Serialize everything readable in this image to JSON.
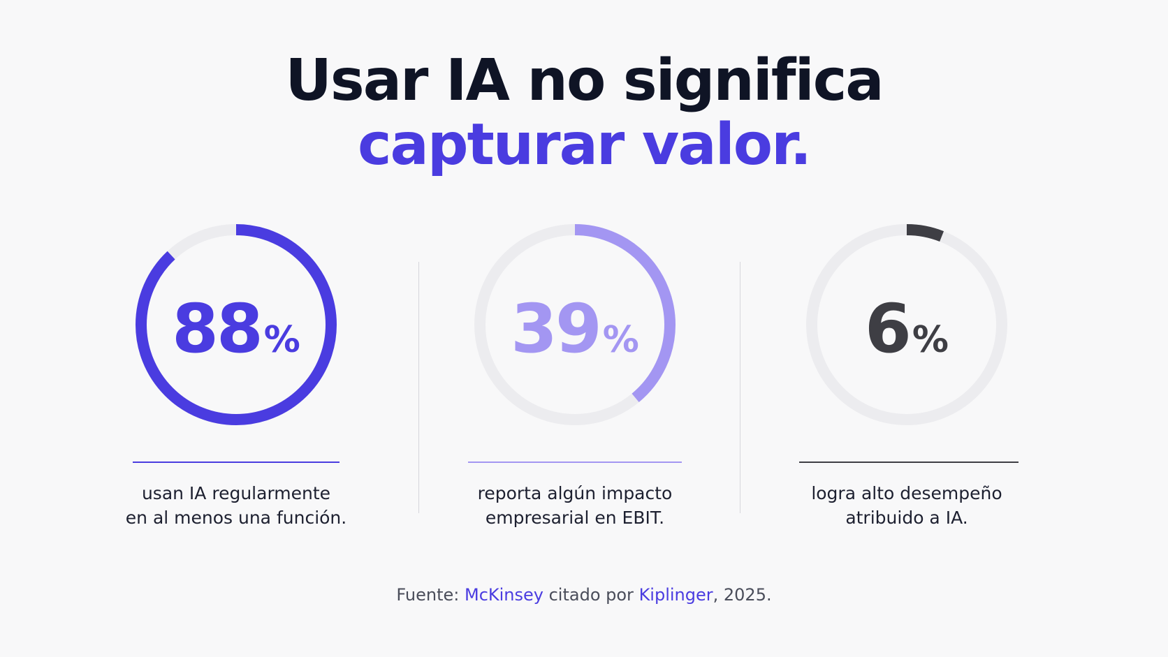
{
  "title": {
    "line1": "Usar IA no significa",
    "line2": "capturar valor."
  },
  "chart_data": {
    "type": "donut",
    "items": [
      {
        "value": 88,
        "unit": "%",
        "color": "#4a3ce0",
        "track": "#ececef",
        "desc": [
          "usan IA regularmente",
          "en al menos una función."
        ]
      },
      {
        "value": 39,
        "unit": "%",
        "color": "#a396f2",
        "track": "#ececef",
        "desc": [
          "reporta algún impacto",
          "empresarial en EBIT."
        ]
      },
      {
        "value": 6,
        "unit": "%",
        "color": "#3e3e44",
        "track": "#ececef",
        "desc": [
          "logra alto desempeño",
          "atribuido a IA."
        ]
      }
    ]
  },
  "source": {
    "prefix": "Fuente: ",
    "org": "McKinsey",
    "middle": " citado por ",
    "publisher": "Kiplinger",
    "suffix": ", 2025."
  }
}
